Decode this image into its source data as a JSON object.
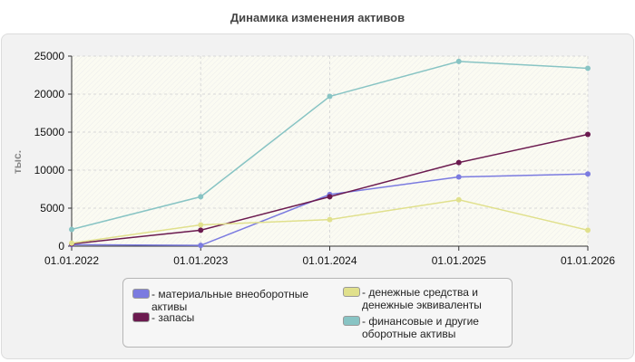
{
  "chart_data": {
    "type": "line",
    "title": "Динамика изменения активов",
    "ylabel": "тыс.",
    "xlabel": "",
    "categories": [
      "01.01.2022",
      "01.01.2023",
      "01.01.2024",
      "01.01.2025",
      "01.01.2026"
    ],
    "ylim": [
      0,
      25000
    ],
    "yticks": [
      0,
      5000,
      10000,
      15000,
      20000,
      25000
    ],
    "grid": true,
    "legend_position": "bottom",
    "series": [
      {
        "name": "- материальные внеоборотные активы",
        "color": "#7b7be0",
        "values": [
          200,
          100,
          6800,
          9100,
          9500
        ]
      },
      {
        "name": "- запасы",
        "color": "#6b1a4f",
        "values": [
          300,
          2100,
          6500,
          11000,
          14700
        ]
      },
      {
        "name": "- денежные средства и денежные эквиваленты",
        "color": "#e0e08c",
        "values": [
          400,
          2800,
          3500,
          6100,
          2100
        ]
      },
      {
        "name": "- финансовые и другие оборотные активы",
        "color": "#88c4c4",
        "values": [
          2200,
          6500,
          19700,
          24300,
          23400
        ]
      }
    ]
  }
}
